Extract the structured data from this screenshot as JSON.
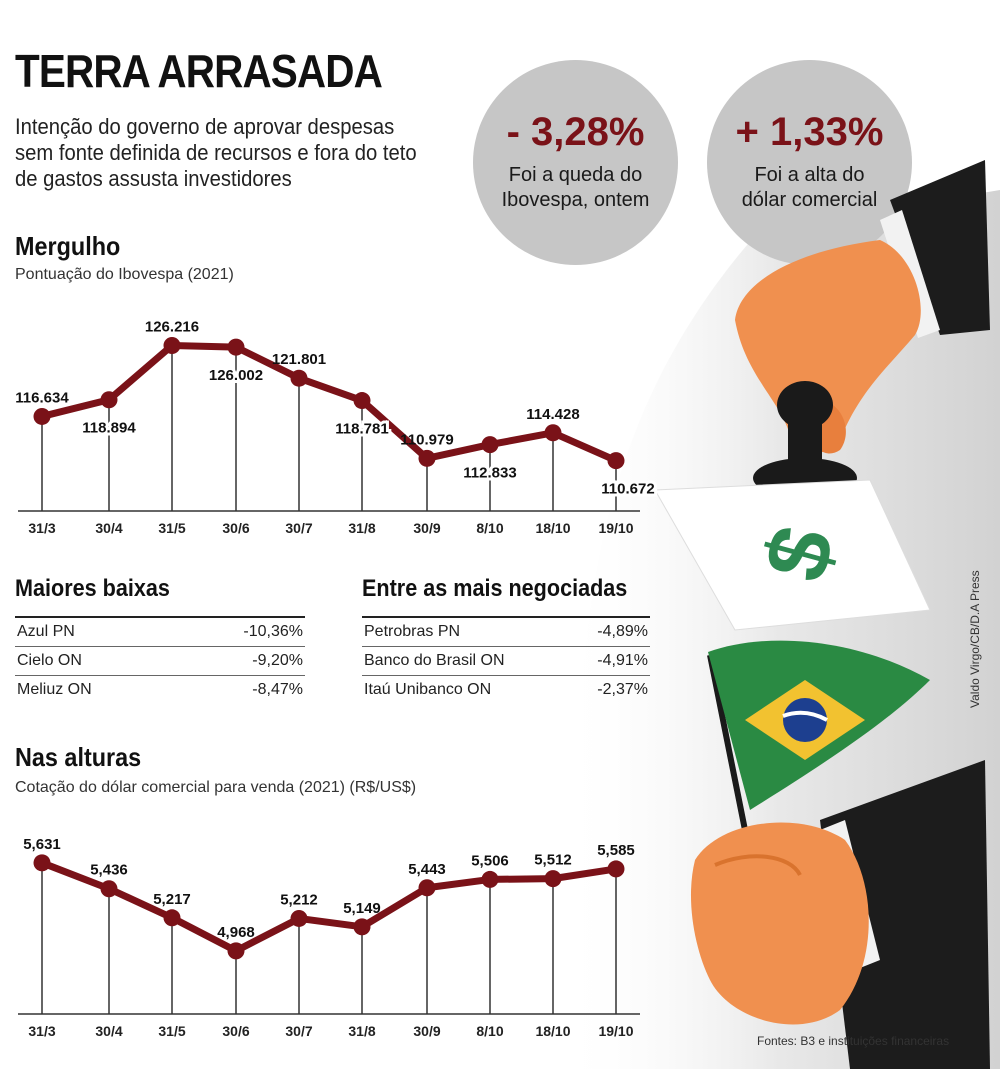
{
  "header": {
    "title": "TERRA ARRASADA",
    "subtitle": "Intenção do governo de aprovar despesas sem fonte definida de recursos e fora do teto de gastos assusta investidores"
  },
  "highlights": [
    {
      "value": "- 3,28%",
      "caption_l1": "Foi a queda do",
      "caption_l2": "Ibovespa, ontem"
    },
    {
      "value": "+ 1,33%",
      "caption_l1": "Foi a alta do",
      "caption_l2": "dólar comercial"
    }
  ],
  "colors": {
    "line": "#7a1218",
    "marker": "#7a1218",
    "circle": "#c6c6c6",
    "pct_text": "#7a1218"
  },
  "chart_data": [
    {
      "type": "line",
      "title": "Mergulho",
      "subtitle": "Pontuação do Ibovespa (2021)",
      "categories": [
        "31/3",
        "30/4",
        "31/5",
        "30/6",
        "30/7",
        "31/8",
        "30/9",
        "8/10",
        "18/10",
        "19/10"
      ],
      "values": [
        116634,
        118894,
        126216,
        126002,
        121801,
        118781,
        110979,
        112833,
        114428,
        110672
      ],
      "labels": [
        "116.634",
        "118.894",
        "126.216",
        "126.002",
        "121.801",
        "118.781",
        "110.979",
        "112.833",
        "114.428",
        "110.672"
      ],
      "ylim": [
        104000,
        127500
      ],
      "xlabel": "",
      "ylabel": ""
    },
    {
      "type": "line",
      "title": "Nas alturas",
      "subtitle": "Cotação do dólar comercial para venda (2021) (R$/US$)",
      "categories": [
        "31/3",
        "30/4",
        "31/5",
        "30/6",
        "30/7",
        "31/8",
        "30/9",
        "8/10",
        "18/10",
        "19/10"
      ],
      "values": [
        5.631,
        5.436,
        5.217,
        4.968,
        5.212,
        5.149,
        5.443,
        5.506,
        5.512,
        5.585
      ],
      "labels": [
        "5,631",
        "5,436",
        "5,217",
        "4,968",
        "5,212",
        "5,149",
        "5,443",
        "5,506",
        "5,512",
        "5,585"
      ],
      "ylim": [
        4.5,
        5.72
      ],
      "xlabel": "",
      "ylabel": ""
    }
  ],
  "tables": {
    "baixas": {
      "title": "Maiores baixas",
      "rows": [
        {
          "name": "Azul PN",
          "value": "-10,36%"
        },
        {
          "name": "Cielo ON",
          "value": "-9,20%"
        },
        {
          "name": "Meliuz ON",
          "value": "-8,47%"
        }
      ]
    },
    "negociadas": {
      "title": "Entre as mais negociadas",
      "rows": [
        {
          "name": "Petrobras PN",
          "value": "-4,89%"
        },
        {
          "name": "Banco do Brasil ON",
          "value": "-4,91%"
        },
        {
          "name": "Itaú Unibanco ON",
          "value": "-2,37%"
        }
      ]
    }
  },
  "credit": "Valdo Virgo/CB/D.A Press",
  "sources": "Fontes: B3 e instituições financeiras",
  "illustration": {
    "dollar_glyph": "$"
  }
}
